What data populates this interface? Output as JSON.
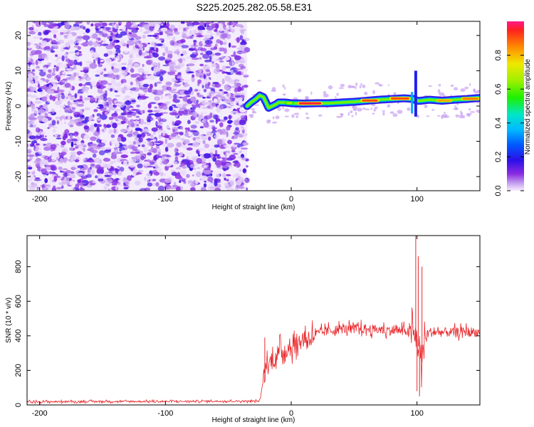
{
  "title": "S225.2025.282.05.58.E31",
  "chart_data": [
    {
      "type": "heatmap",
      "xlabel": "Height of straight line (km)",
      "ylabel": "Frequency (Hz)",
      "xlim": [
        -210,
        150
      ],
      "ylim": [
        -24,
        24
      ],
      "xticks": [
        -200,
        -100,
        0,
        100
      ],
      "xtick_labels": [
        "-200",
        "-100",
        "0",
        "100"
      ],
      "yticks": [
        -20,
        -10,
        0,
        10,
        20
      ],
      "ytick_labels": [
        "-20",
        "-10",
        "0",
        "10",
        "20"
      ],
      "noise_region_end_km": -35,
      "ridge": {
        "x": [
          -35,
          -32,
          -28,
          -25,
          -22,
          -20,
          -18,
          -15,
          -12,
          -10,
          -5,
          0,
          10,
          20,
          30,
          40,
          50,
          60,
          70,
          80,
          90,
          97,
          100,
          103,
          110,
          120,
          130,
          140,
          150
        ],
        "y": [
          0,
          1,
          2,
          3,
          2.5,
          1,
          -0.5,
          0,
          0.5,
          1,
          1,
          0.8,
          0.7,
          0.8,
          0.8,
          1,
          1.2,
          1.5,
          1.8,
          2,
          2.2,
          2,
          1.5,
          1.5,
          1.8,
          1.5,
          1.8,
          2,
          2.3
        ]
      },
      "hotspots": [
        {
          "x_start": 5,
          "x_end": 25,
          "amplitude": 1.0
        },
        {
          "x_start": 55,
          "x_end": 70,
          "amplitude": 0.95
        },
        {
          "x_start": 78,
          "x_end": 95,
          "amplitude": 0.95
        },
        {
          "x_start": 115,
          "x_end": 128,
          "amplitude": 0.85
        },
        {
          "x_start": 135,
          "x_end": 150,
          "amplitude": 0.9
        },
        {
          "x_start": -5,
          "x_end": 2,
          "amplitude": 0.7
        }
      ],
      "colorbar": {
        "label": "Normalized spectral amplitude",
        "range": [
          0,
          1
        ],
        "ticks": [
          0.0,
          0.2,
          0.4,
          0.6,
          0.8
        ],
        "tick_labels": [
          "0.0",
          "0.2",
          "0.4",
          "0.6",
          "0.8"
        ]
      }
    },
    {
      "type": "line",
      "xlabel": "Height of straight line (km)",
      "ylabel": "SNR (10 * v/v)",
      "xlim": [
        -210,
        150
      ],
      "ylim": [
        0,
        980
      ],
      "xticks": [
        -200,
        -100,
        0,
        100
      ],
      "xtick_labels": [
        "-200",
        "-100",
        "0",
        "100"
      ],
      "yticks": [
        0,
        200,
        400,
        600,
        800
      ],
      "ytick_labels": [
        "0",
        "200",
        "400",
        "600",
        "800"
      ],
      "line_color": "#e8262a",
      "envelope": {
        "x": [
          -210,
          -150,
          -100,
          -50,
          -25,
          -22,
          -20,
          -15,
          -10,
          -5,
          0,
          5,
          10,
          20,
          30,
          40,
          50,
          60,
          70,
          80,
          90,
          95,
          98,
          100,
          102,
          104,
          106,
          110,
          120,
          130,
          140,
          150
        ],
        "y": [
          18,
          20,
          20,
          22,
          22,
          150,
          220,
          260,
          300,
          320,
          340,
          360,
          380,
          410,
          430,
          440,
          440,
          440,
          435,
          430,
          430,
          420,
          400,
          380,
          300,
          250,
          400,
          420,
          420,
          420,
          425,
          420
        ]
      },
      "spikes": [
        {
          "x": -21,
          "y": 390
        },
        {
          "x": 99,
          "y": 980
        },
        {
          "x": 100,
          "y": 80
        },
        {
          "x": 101,
          "y": 860
        },
        {
          "x": 102,
          "y": 50
        },
        {
          "x": 104,
          "y": 800
        }
      ]
    }
  ],
  "colors": {
    "line": "#e8262a",
    "axes": "#000000"
  }
}
